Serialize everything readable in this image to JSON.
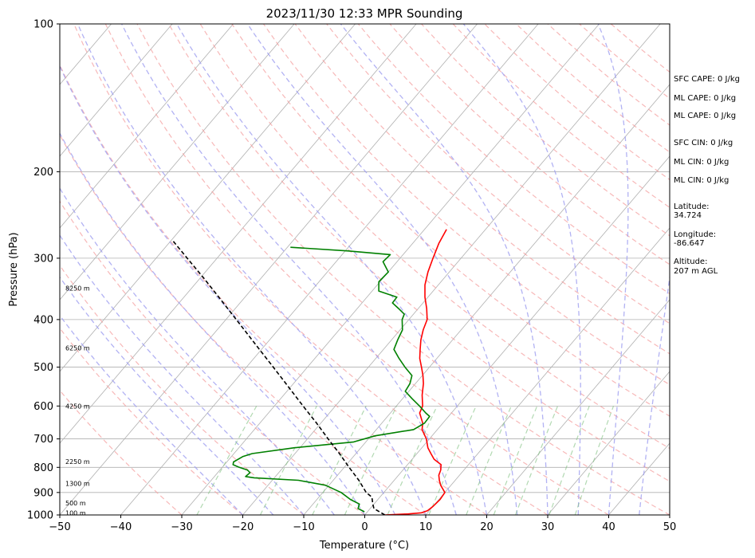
{
  "chart_data": {
    "type": "line",
    "chart_kind": "skew-T log-P sounding",
    "title": "2023/11/30 12:33 MPR Sounding",
    "xlabel": "Temperature (°C)",
    "ylabel": "Pressure (hPa)",
    "xlim": [
      -50,
      50
    ],
    "ylim": [
      1000,
      100
    ],
    "y_scale": "log",
    "x_ticks": [
      "−50",
      "−40",
      "−30",
      "−20",
      "−10",
      "0",
      "10",
      "20",
      "30",
      "40",
      "50"
    ],
    "y_ticks": [
      "100",
      "200",
      "300",
      "400",
      "500",
      "600",
      "700",
      "800",
      "900",
      "1000"
    ],
    "y_tick_values": [
      100,
      200,
      300,
      400,
      500,
      600,
      700,
      800,
      900,
      1000
    ],
    "grid": true,
    "series": [
      {
        "color": "#ff0000",
        "points": [
          [
            1000,
            3.3
          ],
          [
            995,
            7
          ],
          [
            990,
            9
          ],
          [
            980,
            9.7
          ],
          [
            960,
            10
          ],
          [
            930,
            10.2
          ],
          [
            900,
            10
          ],
          [
            870,
            8.3
          ],
          [
            850,
            7.4
          ],
          [
            830,
            6.6
          ],
          [
            810,
            6.2
          ],
          [
            790,
            5.5
          ],
          [
            770,
            3.6
          ],
          [
            750,
            2.3
          ],
          [
            730,
            1
          ],
          [
            700,
            -0.5
          ],
          [
            670,
            -2.5
          ],
          [
            650,
            -3.3
          ],
          [
            620,
            -5.2
          ],
          [
            600,
            -5.7
          ],
          [
            570,
            -7.3
          ],
          [
            540,
            -8.7
          ],
          [
            520,
            -9.9
          ],
          [
            500,
            -11.3
          ],
          [
            480,
            -12.8
          ],
          [
            460,
            -14
          ],
          [
            440,
            -15.2
          ],
          [
            420,
            -16.2
          ],
          [
            400,
            -17
          ],
          [
            380,
            -18.6
          ],
          [
            360,
            -20.5
          ],
          [
            340,
            -22.2
          ],
          [
            320,
            -23.5
          ],
          [
            300,
            -24.6
          ],
          [
            280,
            -25.7
          ],
          [
            262,
            -26.4
          ]
        ]
      },
      {
        "color": "#008000",
        "points": [
          [
            985,
            -0.5
          ],
          [
            970,
            -2
          ],
          [
            950,
            -2.4
          ],
          [
            930,
            -4.5
          ],
          [
            900,
            -7
          ],
          [
            870,
            -10.6
          ],
          [
            850,
            -15.7
          ],
          [
            840,
            -23.3
          ],
          [
            835,
            -24.9
          ],
          [
            820,
            -24.7
          ],
          [
            810,
            -25.5
          ],
          [
            800,
            -27.2
          ],
          [
            790,
            -28.6
          ],
          [
            780,
            -28.9
          ],
          [
            760,
            -28.1
          ],
          [
            750,
            -27
          ],
          [
            730,
            -21
          ],
          [
            710,
            -12
          ],
          [
            690,
            -9.3
          ],
          [
            670,
            -3.9
          ],
          [
            650,
            -3
          ],
          [
            630,
            -3.1
          ],
          [
            620,
            -4.2
          ],
          [
            600,
            -6.2
          ],
          [
            580,
            -8.4
          ],
          [
            560,
            -10.6
          ],
          [
            540,
            -10.9
          ],
          [
            520,
            -11.7
          ],
          [
            500,
            -14
          ],
          [
            480,
            -16.2
          ],
          [
            460,
            -18.3
          ],
          [
            440,
            -19
          ],
          [
            420,
            -19.6
          ],
          [
            400,
            -21.1
          ],
          [
            390,
            -21.5
          ],
          [
            380,
            -23.2
          ],
          [
            370,
            -25
          ],
          [
            360,
            -25.1
          ],
          [
            350,
            -28.9
          ],
          [
            335,
            -30.2
          ],
          [
            320,
            -30
          ],
          [
            305,
            -32.3
          ],
          [
            295,
            -32.1
          ],
          [
            290,
            -39.5
          ],
          [
            285,
            -49.5
          ]
        ]
      },
      {
        "color": "#000000",
        "style": "dashed",
        "points": [
          [
            1000,
            3.3
          ],
          [
            970,
            0.6
          ],
          [
            950,
            -0.2
          ],
          [
            920,
            -1.3
          ],
          [
            900,
            -2.9
          ],
          [
            850,
            -5.8
          ],
          [
            800,
            -9.2
          ],
          [
            750,
            -12.7
          ],
          [
            700,
            -16.6
          ],
          [
            650,
            -20.7
          ],
          [
            600,
            -25.3
          ],
          [
            550,
            -30.2
          ],
          [
            500,
            -35.6
          ],
          [
            450,
            -41.6
          ],
          [
            400,
            -48.3
          ],
          [
            360,
            -54.3
          ],
          [
            330,
            -59.3
          ],
          [
            300,
            -64.9
          ],
          [
            275,
            -70
          ]
        ]
      }
    ],
    "reference_lines": {
      "isotherms_colour": "#b0b0b0",
      "dry_adiabats_colour": "#f4a0a0",
      "moist_adiabats_colour": "#9f9ff0",
      "mixing_ratio_colour": "#7fbf7f"
    },
    "height_labels": [
      {
        "label": "100 m",
        "pressure": 990
      },
      {
        "label": "500 m",
        "pressure": 945
      },
      {
        "label": "1300 m",
        "pressure": 862
      },
      {
        "label": "2250 m",
        "pressure": 778
      },
      {
        "label": "4250 m",
        "pressure": 600
      },
      {
        "label": "6250 m",
        "pressure": 457
      },
      {
        "label": "8250 m",
        "pressure": 345
      }
    ],
    "annotations": [
      "SFC CAPE: 0 J/kg",
      "ML CAPE: 0 J/kg",
      "ML CAPE: 0 J/kg",
      "SFC CIN: 0 J/kg",
      "ML CIN: 0 J/kg",
      "ML CIN: 0 J/kg",
      "Latitude:",
      "34.724",
      "Longitude:",
      "-86.647",
      "Altitude:",
      "207 m AGL"
    ]
  }
}
